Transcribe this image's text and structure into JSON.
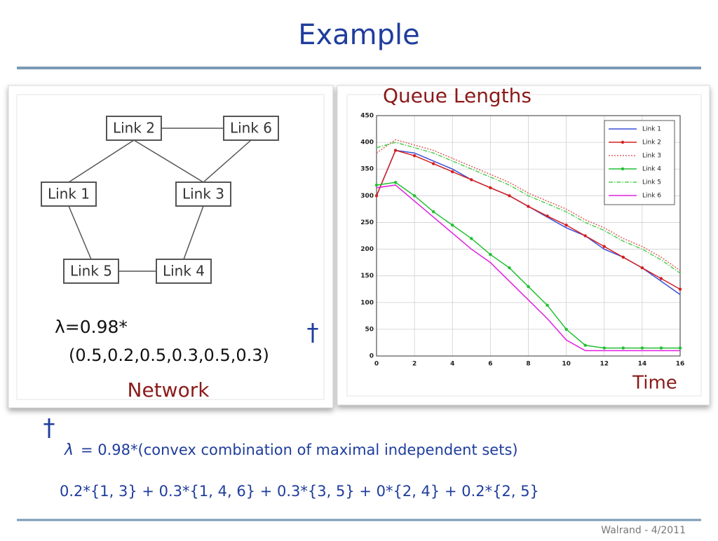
{
  "title": "Example",
  "network": {
    "nodes": [
      {
        "label": "Link 1"
      },
      {
        "label": "Link 2"
      },
      {
        "label": "Link 3"
      },
      {
        "label": "Link 4"
      },
      {
        "label": "Link 5"
      },
      {
        "label": "Link 6"
      }
    ],
    "rate": "λ=0.98*",
    "vector": "(0.5,0.2,0.5,0.3,0.5,0.3)",
    "caption": "Network"
  },
  "dagger": "†",
  "chart_data": {
    "type": "line",
    "title": "Queue Lengths",
    "x_label": "Time",
    "x": [
      0,
      1,
      2,
      3,
      4,
      5,
      6,
      7,
      8,
      9,
      10,
      11,
      12,
      13,
      14,
      15,
      16
    ],
    "xlim": [
      0,
      16
    ],
    "xticks": [
      0,
      2,
      4,
      6,
      8,
      10,
      12,
      14,
      16
    ],
    "ylim": [
      0,
      450
    ],
    "yticks": [
      0,
      50,
      100,
      150,
      200,
      250,
      300,
      350,
      400,
      450
    ],
    "grid": true,
    "legend": "upper right",
    "series": [
      {
        "name": "Link 1",
        "color": "#3a4fd8",
        "linestyle": "solid",
        "marker": false,
        "values": [
          300,
          385,
          380,
          365,
          350,
          330,
          315,
          300,
          280,
          260,
          240,
          225,
          200,
          185,
          165,
          140,
          115
        ]
      },
      {
        "name": "Link 2",
        "color": "#d42020",
        "linestyle": "solid",
        "marker": true,
        "values": [
          300,
          385,
          375,
          360,
          345,
          330,
          315,
          300,
          280,
          262,
          245,
          225,
          205,
          185,
          165,
          145,
          125
        ]
      },
      {
        "name": "Link 3",
        "color": "#e06060",
        "linestyle": "dotted",
        "marker": false,
        "values": [
          380,
          405,
          395,
          385,
          370,
          355,
          340,
          325,
          305,
          290,
          275,
          255,
          240,
          220,
          205,
          185,
          160
        ]
      },
      {
        "name": "Link 4",
        "color": "#20c030",
        "linestyle": "solid",
        "marker": true,
        "values": [
          320,
          325,
          300,
          270,
          245,
          220,
          190,
          165,
          130,
          95,
          50,
          20,
          15,
          15,
          15,
          15,
          15
        ]
      },
      {
        "name": "Link 5",
        "color": "#50d050",
        "linestyle": "dashdot",
        "marker": false,
        "values": [
          390,
          400,
          390,
          380,
          365,
          350,
          335,
          320,
          300,
          285,
          270,
          250,
          235,
          215,
          200,
          180,
          155
        ]
      },
      {
        "name": "Link 6",
        "color": "#e020e0",
        "linestyle": "solid",
        "marker": false,
        "values": [
          315,
          320,
          290,
          260,
          230,
          200,
          175,
          140,
          105,
          70,
          30,
          10,
          10,
          10,
          10,
          10,
          10
        ]
      }
    ]
  },
  "notes": {
    "marker": "†",
    "symbol": "λ",
    "lines": [
      "= 0.98*(convex combination of maximal independent sets)",
      "0.2*{1, 3} + 0.3*{1, 4, 6} + 0.3*{3, 5} + 0*{2, 4} + 0.2*{2, 5}"
    ]
  },
  "footer": "Walrand - 4/2011"
}
